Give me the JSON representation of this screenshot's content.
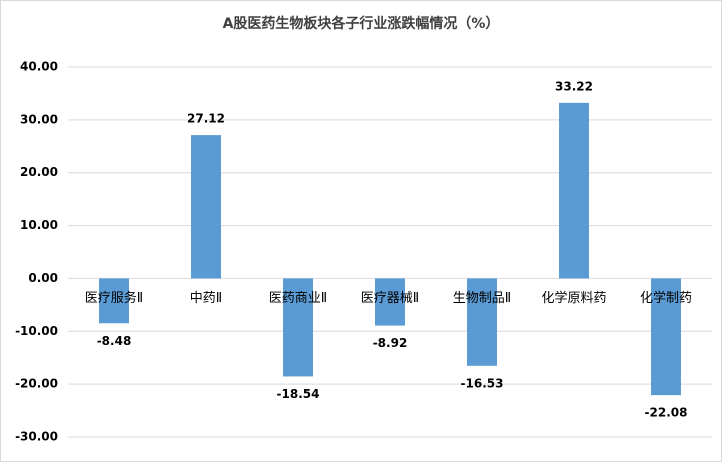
{
  "chart_data": {
    "type": "bar",
    "title": "A股医药生物板块各子行业涨跌幅情况（%）",
    "categories": [
      "医疗服务Ⅱ",
      "中药Ⅱ",
      "医药商业Ⅱ",
      "医疗器械Ⅱ",
      "生物制品Ⅱ",
      "化学原料药",
      "化学制药"
    ],
    "values": [
      -8.48,
      27.12,
      -18.54,
      -8.92,
      -16.53,
      33.22,
      -22.08
    ],
    "color": "#5b9bd5",
    "ylim": [
      -30,
      40
    ],
    "yticks": [
      {
        "value": -30,
        "label": "-30.00"
      },
      {
        "value": -20,
        "label": "-20.00"
      },
      {
        "value": -10,
        "label": "-10.00"
      },
      {
        "value": 0,
        "label": "0.00"
      },
      {
        "value": 10,
        "label": "10.00"
      },
      {
        "value": 20,
        "label": "20.00"
      },
      {
        "value": 30,
        "label": "30.00"
      },
      {
        "value": 40,
        "label": "40.00"
      }
    ],
    "grid": true
  }
}
